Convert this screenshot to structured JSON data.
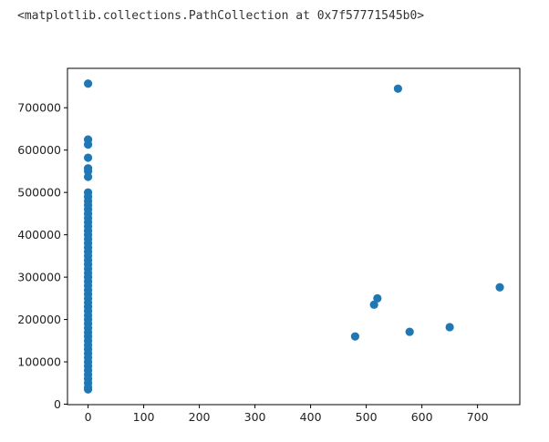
{
  "output": "<matplotlib.collections.PathCollection at 0x7f57771545b0>",
  "chart_data": {
    "type": "scatter",
    "color": "#1f77b4",
    "x": [
      0,
      0,
      0,
      0,
      0,
      0,
      0,
      0,
      0,
      0,
      0,
      0,
      0,
      0,
      0,
      0,
      0,
      0,
      0,
      0,
      0,
      0,
      0,
      0,
      0,
      0,
      0,
      0,
      0,
      0,
      0,
      0,
      0,
      0,
      0,
      0,
      0,
      0,
      0,
      0,
      0,
      0,
      0,
      0,
      0,
      0,
      0,
      0,
      0,
      0,
      0,
      0,
      0,
      0,
      0,
      480,
      514,
      520,
      557,
      578,
      650,
      740
    ],
    "values": [
      757000,
      625000,
      613000,
      582000,
      557000,
      550000,
      537000,
      500000,
      490000,
      480000,
      470000,
      460000,
      450000,
      440000,
      430000,
      420000,
      410000,
      400000,
      390000,
      380000,
      370000,
      360000,
      350000,
      340000,
      330000,
      320000,
      310000,
      300000,
      290000,
      280000,
      270000,
      260000,
      250000,
      240000,
      230000,
      220000,
      210000,
      200000,
      190000,
      180000,
      170000,
      160000,
      150000,
      140000,
      130000,
      120000,
      110000,
      100000,
      90000,
      80000,
      70000,
      60000,
      50000,
      40000,
      35000,
      160000,
      235000,
      250000,
      745000,
      171000,
      182000,
      276000
    ],
    "xlim": [
      -37,
      776
    ],
    "ylim": [
      -1000,
      793000
    ],
    "xticks": [
      0,
      100,
      200,
      300,
      400,
      500,
      600,
      700
    ],
    "yticks": [
      0,
      100000,
      200000,
      300000,
      400000,
      500000,
      600000,
      700000
    ]
  }
}
